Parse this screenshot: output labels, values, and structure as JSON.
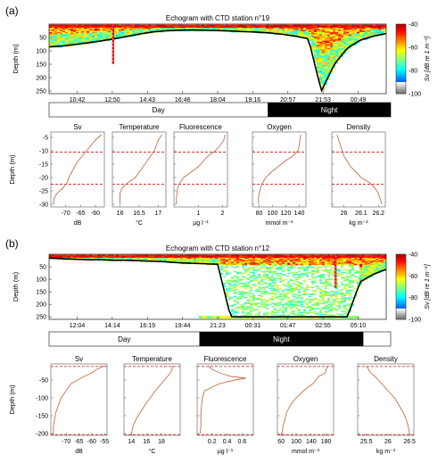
{
  "panels": [
    {
      "label": "(a)",
      "title": "Echogram with CTD station n°19",
      "echogram": {
        "ylabel": "Depth (m)",
        "yticks": [
          50,
          100,
          150,
          200,
          250
        ],
        "ylim": [
          0,
          260
        ],
        "xticks": [
          "10:42",
          "12:50",
          "14:43",
          "16:46",
          "18:04",
          "19:16",
          "20:57",
          "21:53",
          "00:49"
        ],
        "seafloor_depth": [
          85,
          82,
          76,
          70,
          63,
          55,
          46,
          37,
          29,
          25,
          23,
          22,
          23,
          24,
          26,
          28,
          30,
          33,
          38,
          45,
          55,
          250,
          150,
          90,
          60,
          45,
          35
        ],
        "ctd_cast_position": 0.19,
        "ctd_cast_depth": [
          0,
          150
        ],
        "colorbar": {
          "ticks": [
            -40,
            -60,
            -80,
            -100
          ],
          "vmin": -100,
          "vmax": -40,
          "label": "Sv [dB re 1 m⁻¹]"
        }
      },
      "daynight": {
        "day_label": "Day",
        "night_label": "Night",
        "night_start_fraction": 0.64
      },
      "profiles": [
        {
          "name": "Sv",
          "xlabel": "dB",
          "xticks": [
            -70,
            -65,
            -60
          ],
          "xlim": [
            -75,
            -57
          ],
          "y": [
            -4,
            -6,
            -8,
            -10,
            -12,
            -14,
            -16,
            -18,
            -20,
            -22,
            -24,
            -26,
            -28,
            -30
          ],
          "x": [
            -58,
            -60,
            -61.5,
            -63,
            -64.5,
            -66,
            -67,
            -68,
            -69,
            -69.5,
            -71,
            -73,
            -74,
            -74
          ]
        },
        {
          "name": "Temperature",
          "xlabel": "°C",
          "xticks": [
            16,
            16.5,
            17
          ],
          "xlim": [
            15.8,
            17.2
          ],
          "y": [
            -4,
            -6,
            -8,
            -10,
            -12,
            -14,
            -16,
            -18,
            -20,
            -22,
            -24,
            -26,
            -28,
            -30
          ],
          "x": [
            17.1,
            17.0,
            16.95,
            16.9,
            16.8,
            16.7,
            16.6,
            16.5,
            16.4,
            16.2,
            16.05,
            16.0,
            16.0,
            16.0
          ]
        },
        {
          "name": "Fluorescence",
          "xlabel": "µg l⁻¹",
          "xticks": [
            1,
            2
          ],
          "xlim": [
            0,
            2.2
          ],
          "y": [
            -4,
            -6,
            -8,
            -10,
            -12,
            -14,
            -16,
            -18,
            -20,
            -22,
            -24,
            -26,
            -28,
            -30
          ],
          "x": [
            2.1,
            2.05,
            1.9,
            1.7,
            1.4,
            1.2,
            1.0,
            0.7,
            0.4,
            0.25,
            0.15,
            0.12,
            0.1,
            0.1
          ]
        },
        {
          "name": "Oxygen",
          "xlabel": "mmol m⁻³",
          "xticks": [
            80,
            100,
            120,
            140
          ],
          "xlim": [
            70,
            150
          ],
          "y": [
            -4,
            -6,
            -8,
            -10,
            -12,
            -14,
            -16,
            -18,
            -20,
            -22,
            -24,
            -26,
            -28,
            -30
          ],
          "x": [
            142,
            141,
            140,
            138,
            130,
            118,
            108,
            98,
            90,
            85,
            82,
            80,
            79,
            79
          ]
        },
        {
          "name": "Density",
          "xlabel": "kg m⁻³",
          "xticks": [
            26,
            26.1,
            26.2
          ],
          "xlim": [
            25.93,
            26.24
          ],
          "y": [
            -4,
            -6,
            -8,
            -10,
            -12,
            -14,
            -16,
            -18,
            -20,
            -22,
            -24,
            -26,
            -28,
            -30
          ],
          "x": [
            25.96,
            25.97,
            25.98,
            25.99,
            26.0,
            26.02,
            26.04,
            26.07,
            26.1,
            26.15,
            26.18,
            26.2,
            26.21,
            26.22
          ]
        }
      ],
      "profile_ylim": [
        -31,
        -3
      ],
      "profile_yticks": [
        -5,
        -10,
        -15,
        -20,
        -25,
        -30
      ],
      "profile_ylabel": "Depth (m)",
      "dashed_depths": [
        -10.5,
        -22.5
      ]
    },
    {
      "label": "(b)",
      "title": "Echogram with CTD station n°12",
      "echogram": {
        "ylabel": "Depth (m)",
        "yticks": [
          50,
          100,
          150,
          200,
          250
        ],
        "ylim": [
          0,
          260
        ],
        "xticks": [
          "12:04",
          "14:14",
          "16:19",
          "19:44",
          "21:23",
          "00:31",
          "01:47",
          "02:55",
          "05:10"
        ],
        "seafloor_depth": [
          15,
          18,
          20,
          22,
          22,
          24,
          24,
          26,
          28,
          30,
          34,
          36,
          38,
          40,
          250,
          250,
          250,
          250,
          250,
          250,
          250,
          250,
          250,
          250,
          110,
          80,
          60
        ],
        "ctd_cast_position": 0.85,
        "ctd_cast_depth": [
          5,
          135
        ],
        "colorbar": {
          "ticks": [
            -40,
            -60,
            -80,
            -100
          ],
          "vmin": -100,
          "vmax": -40,
          "label": "Sv [dB re 1 m⁻¹]"
        }
      },
      "daynight": {
        "day_label": "Day",
        "night_label": "Night",
        "night_start_fraction": 0.44,
        "night_end_fraction": 0.92
      },
      "profiles": [
        {
          "name": "Sv",
          "xlabel": "dB",
          "xticks": [
            -70,
            -65,
            -60,
            -55
          ],
          "xlim": [
            -76,
            -54
          ],
          "y": [
            -10,
            -20,
            -30,
            -40,
            -60,
            -80,
            -100,
            -120,
            -140,
            -160,
            -180,
            -200,
            -205
          ],
          "x": [
            -55,
            -58,
            -60,
            -63,
            -68,
            -70,
            -72,
            -73,
            -74,
            -74.5,
            -75,
            -75,
            -75
          ]
        },
        {
          "name": "Temperature",
          "xlabel": "°C",
          "xticks": [
            14,
            16,
            18
          ],
          "xlim": [
            13,
            20.5
          ],
          "y": [
            -10,
            -20,
            -30,
            -40,
            -60,
            -80,
            -100,
            -120,
            -140,
            -160,
            -180,
            -200,
            -205
          ],
          "x": [
            19.5,
            19.4,
            19.2,
            18.8,
            18.0,
            17.2,
            16.5,
            15.8,
            15.2,
            14.6,
            14.2,
            14.0,
            14.0
          ]
        },
        {
          "name": "Fluorescence",
          "xlabel": "µg l⁻¹",
          "xticks": [
            0.2,
            0.4,
            0.6
          ],
          "xlim": [
            0,
            0.75
          ],
          "y": [
            -10,
            -20,
            -30,
            -40,
            -45,
            -50,
            -60,
            -80,
            -100,
            -120,
            -140,
            -160,
            -180,
            -200
          ],
          "x": [
            0.15,
            0.2,
            0.3,
            0.45,
            0.65,
            0.5,
            0.3,
            0.1,
            0.07,
            0.06,
            0.05,
            0.05,
            0.05,
            0.04
          ]
        },
        {
          "name": "Oxygen",
          "xlabel": "mmol m⁻³",
          "xticks": [
            60,
            100,
            140,
            180
          ],
          "xlim": [
            50,
            200
          ],
          "y": [
            -10,
            -20,
            -30,
            -40,
            -60,
            -80,
            -100,
            -120,
            -140,
            -160,
            -180,
            -200,
            -205
          ],
          "x": [
            185,
            180,
            178,
            160,
            145,
            120,
            100,
            85,
            75,
            70,
            65,
            62,
            62
          ]
        },
        {
          "name": "Density",
          "xlabel": "kg m⁻³",
          "xticks": [
            25.5,
            26,
            26.5
          ],
          "xlim": [
            25.3,
            26.6
          ],
          "y": [
            -10,
            -20,
            -30,
            -40,
            -60,
            -80,
            -100,
            -120,
            -140,
            -160,
            -180,
            -200,
            -205
          ],
          "x": [
            25.5,
            25.55,
            25.6,
            25.7,
            25.85,
            26.0,
            26.15,
            26.25,
            26.35,
            26.42,
            26.47,
            26.5,
            26.5
          ]
        }
      ],
      "profile_ylim": [
        -205,
        -5
      ],
      "profile_yticks": [
        -50,
        -100,
        -150,
        -200
      ],
      "profile_ylabel": "Depth (m)",
      "dashed_depths": [
        -12,
        -203
      ]
    }
  ],
  "chart_data": [
    {
      "type": "heatmap",
      "title": "Echogram with CTD station n°19",
      "ylabel": "Depth (m)",
      "ylim": [
        0,
        260
      ],
      "colorbar_label": "Sv [dB re 1 m⁻¹]",
      "color_range": [
        -100,
        -40
      ]
    },
    {
      "type": "line",
      "series": [
        {
          "name": "Sv",
          "x": [
            -58,
            -60,
            -61.5,
            -63,
            -64.5,
            -66,
            -67,
            -68,
            -69,
            -69.5,
            -71,
            -73,
            -74,
            -74
          ],
          "y": [
            -4,
            -6,
            -8,
            -10,
            -12,
            -14,
            -16,
            -18,
            -20,
            -22,
            -24,
            -26,
            -28,
            -30
          ]
        },
        {
          "name": "Temperature",
          "x": [
            17.1,
            17.0,
            16.95,
            16.9,
            16.8,
            16.7,
            16.6,
            16.5,
            16.4,
            16.2,
            16.05,
            16.0,
            16.0,
            16.0
          ],
          "y": [
            -4,
            -6,
            -8,
            -10,
            -12,
            -14,
            -16,
            -18,
            -20,
            -22,
            -24,
            -26,
            -28,
            -30
          ]
        },
        {
          "name": "Fluorescence",
          "x": [
            2.1,
            2.05,
            1.9,
            1.7,
            1.4,
            1.2,
            1.0,
            0.7,
            0.4,
            0.25,
            0.15,
            0.12,
            0.1,
            0.1
          ],
          "y": [
            -4,
            -6,
            -8,
            -10,
            -12,
            -14,
            -16,
            -18,
            -20,
            -22,
            -24,
            -26,
            -28,
            -30
          ]
        },
        {
          "name": "Oxygen",
          "x": [
            142,
            141,
            140,
            138,
            130,
            118,
            108,
            98,
            90,
            85,
            82,
            80,
            79,
            79
          ],
          "y": [
            -4,
            -6,
            -8,
            -10,
            -12,
            -14,
            -16,
            -18,
            -20,
            -22,
            -24,
            -26,
            -28,
            -30
          ]
        },
        {
          "name": "Density",
          "x": [
            25.96,
            25.97,
            25.98,
            25.99,
            26.0,
            26.02,
            26.04,
            26.07,
            26.1,
            26.15,
            26.18,
            26.2,
            26.21,
            26.22
          ],
          "y": [
            -4,
            -6,
            -8,
            -10,
            -12,
            -14,
            -16,
            -18,
            -20,
            -22,
            -24,
            -26,
            -28,
            -30
          ]
        }
      ]
    },
    {
      "type": "heatmap",
      "title": "Echogram with CTD station n°12",
      "ylabel": "Depth (m)",
      "ylim": [
        0,
        260
      ],
      "colorbar_label": "Sv [dB re 1 m⁻¹]",
      "color_range": [
        -100,
        -40
      ]
    },
    {
      "type": "line",
      "series": [
        {
          "name": "Sv",
          "x": [
            -55,
            -58,
            -60,
            -63,
            -68,
            -70,
            -72,
            -73,
            -74,
            -74.5,
            -75,
            -75,
            -75
          ],
          "y": [
            -10,
            -20,
            -30,
            -40,
            -60,
            -80,
            -100,
            -120,
            -140,
            -160,
            -180,
            -200,
            -205
          ]
        },
        {
          "name": "Temperature",
          "x": [
            19.5,
            19.4,
            19.2,
            18.8,
            18.0,
            17.2,
            16.5,
            15.8,
            15.2,
            14.6,
            14.2,
            14.0,
            14.0
          ],
          "y": [
            -10,
            -20,
            -30,
            -40,
            -60,
            -80,
            -100,
            -120,
            -140,
            -160,
            -180,
            -200,
            -205
          ]
        },
        {
          "name": "Fluorescence",
          "x": [
            0.15,
            0.2,
            0.3,
            0.45,
            0.65,
            0.5,
            0.3,
            0.1,
            0.07,
            0.06,
            0.05,
            0.05,
            0.05,
            0.04
          ],
          "y": [
            -10,
            -20,
            -30,
            -40,
            -45,
            -50,
            -60,
            -80,
            -100,
            -120,
            -140,
            -160,
            -180,
            -200
          ]
        },
        {
          "name": "Oxygen",
          "x": [
            185,
            180,
            178,
            160,
            145,
            120,
            100,
            85,
            75,
            70,
            65,
            62,
            62
          ],
          "y": [
            -10,
            -20,
            -30,
            -40,
            -60,
            -80,
            -100,
            -120,
            -140,
            -160,
            -180,
            -200,
            -205
          ]
        },
        {
          "name": "Density",
          "x": [
            25.5,
            25.55,
            25.6,
            25.7,
            25.85,
            26.0,
            26.15,
            26.25,
            26.35,
            26.42,
            26.47,
            26.5,
            26.5
          ],
          "y": [
            -10,
            -20,
            -30,
            -40,
            -60,
            -80,
            -100,
            -120,
            -140,
            -160,
            -180,
            -200,
            -205
          ]
        }
      ]
    }
  ]
}
